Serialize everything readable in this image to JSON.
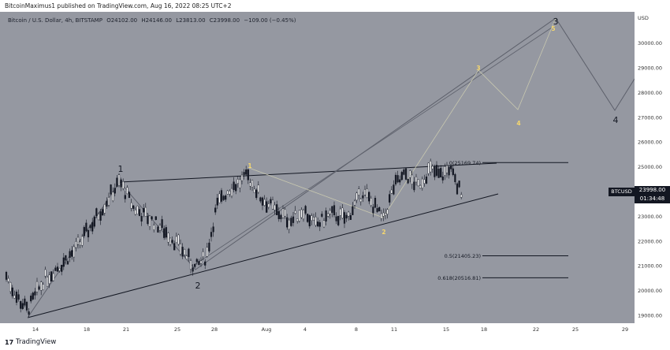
{
  "header": {
    "publisher": "BitcoinMaximus1 published on TradingView.com, Aug 16, 2022 08:25 UTC+2"
  },
  "symbol": {
    "name": "Bitcoin / U.S. Dollar, 4h, BITSTAMP",
    "open": "O24102.00",
    "high": "H24146.00",
    "low": "L23813.00",
    "close": "C23998.00",
    "change": "−109.00 (−0.45%)"
  },
  "ticker_label": "BTCUSD",
  "price_tag": {
    "price": "23998.00",
    "countdown": "01:34:48"
  },
  "footer": {
    "brand": "TradingView",
    "logo": "17"
  },
  "colors": {
    "chart_bg": "#9598a1",
    "wave_yellow": "#f5d76e",
    "line": "#131722",
    "gray_line": "#5d606b"
  },
  "chart_data": {
    "type": "line",
    "title": "",
    "currency_label": "USD",
    "y_ticks": [
      "30000.00",
      "29000.00",
      "28000.00",
      "27000.00",
      "26000.00",
      "25000.00",
      "24000.00",
      "23000.00",
      "22000.00",
      "21000.00",
      "20000.00",
      "19000.00"
    ],
    "x_ticks": [
      "14",
      "18",
      "21",
      "25",
      "28",
      "Aug",
      "4",
      "8",
      "11",
      "15",
      "18",
      "22",
      "25",
      "29"
    ],
    "fib_levels": [
      {
        "label": "0(25169.74)",
        "value": 25169.74
      },
      {
        "label": "0.5(21405.23)",
        "value": 21405.23
      },
      {
        "label": "0.618(20516.81)",
        "value": 20516.81
      }
    ],
    "wave_labels_black": [
      "1",
      "2",
      "3",
      "4"
    ],
    "wave_labels_yellow": [
      "1",
      "2",
      "3",
      "4",
      "5"
    ]
  }
}
